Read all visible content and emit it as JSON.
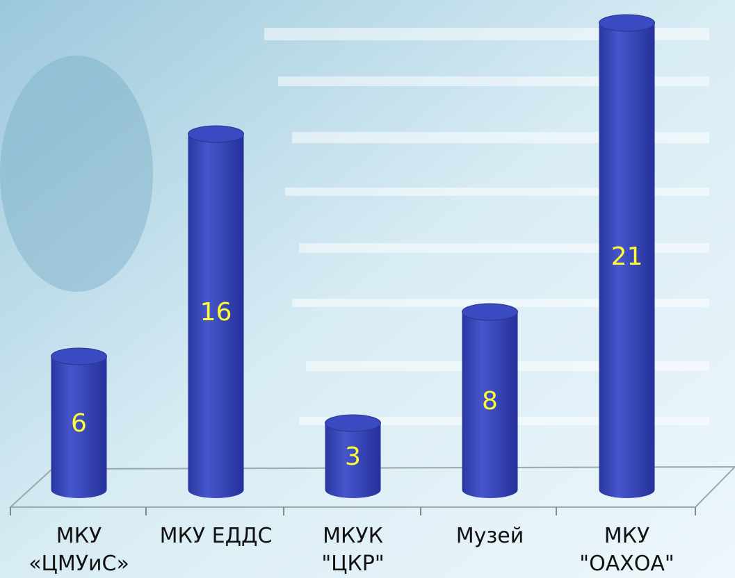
{
  "chart_data": {
    "type": "bar",
    "categories": [
      "МКУ\n«ЦМУиС»",
      "МКУ ЕДДС",
      "МКУК\n\"ЦКР\"",
      "Музей",
      "МКУ\n\"ОАХОА\""
    ],
    "values": [
      6,
      16,
      3,
      8,
      21
    ],
    "color": "#3344bb",
    "label_color": "#ffff33"
  }
}
